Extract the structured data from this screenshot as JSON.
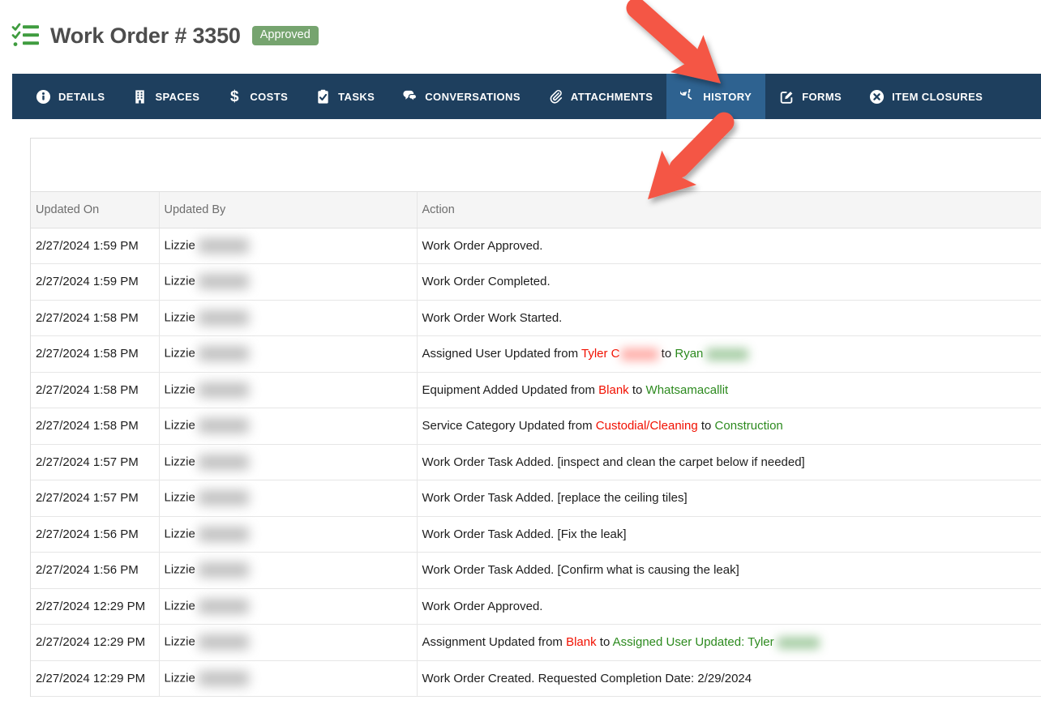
{
  "header": {
    "title": "Work Order # 3350",
    "status_badge": "Approved",
    "icon": "checklist-icon"
  },
  "nav": {
    "tabs": [
      {
        "label": "DETAILS",
        "icon": "info-icon",
        "active": false
      },
      {
        "label": "SPACES",
        "icon": "building-icon",
        "active": false
      },
      {
        "label": "COSTS",
        "icon": "dollar-icon",
        "active": false
      },
      {
        "label": "TASKS",
        "icon": "clipboard-check-icon",
        "active": false
      },
      {
        "label": "CONVERSATIONS",
        "icon": "chat-bubbles-icon",
        "active": false
      },
      {
        "label": "ATTACHMENTS",
        "icon": "paperclip-icon",
        "active": false
      },
      {
        "label": "HISTORY",
        "icon": "history-clock-icon",
        "active": true
      },
      {
        "label": "FORMS",
        "icon": "edit-form-icon",
        "active": false
      },
      {
        "label": "ITEM CLOSURES",
        "icon": "close-circle-icon",
        "active": false
      }
    ]
  },
  "history_table": {
    "columns": [
      "Updated On",
      "Updated By",
      "Action"
    ],
    "rows": [
      {
        "updated_on": "2/27/2024 1:59 PM",
        "updated_by": "Lizzie",
        "by_redacted": true,
        "action": [
          {
            "text": "Work Order Approved."
          }
        ]
      },
      {
        "updated_on": "2/27/2024 1:59 PM",
        "updated_by": "Lizzie",
        "by_redacted": true,
        "action": [
          {
            "text": "Work Order Completed."
          }
        ]
      },
      {
        "updated_on": "2/27/2024 1:58 PM",
        "updated_by": "Lizzie",
        "by_redacted": true,
        "action": [
          {
            "text": "Work Order Work Started."
          }
        ]
      },
      {
        "updated_on": "2/27/2024 1:58 PM",
        "updated_by": "Lizzie",
        "by_redacted": true,
        "action": [
          {
            "text": "Assigned User Updated from "
          },
          {
            "text": "Tyler C",
            "style": "removed"
          },
          {
            "style": "blur-red"
          },
          {
            "text": " to "
          },
          {
            "text": "Ryan",
            "style": "added"
          },
          {
            "style": "blur-green"
          }
        ]
      },
      {
        "updated_on": "2/27/2024 1:58 PM",
        "updated_by": "Lizzie",
        "by_redacted": true,
        "action": [
          {
            "text": "Equipment Added Updated from "
          },
          {
            "text": "Blank",
            "style": "removed"
          },
          {
            "text": " to "
          },
          {
            "text": "Whatsamacallit",
            "style": "added"
          }
        ]
      },
      {
        "updated_on": "2/27/2024 1:58 PM",
        "updated_by": "Lizzie",
        "by_redacted": true,
        "action": [
          {
            "text": "Service Category Updated from "
          },
          {
            "text": "Custodial/Cleaning",
            "style": "removed"
          },
          {
            "text": " to "
          },
          {
            "text": "Construction",
            "style": "added"
          }
        ]
      },
      {
        "updated_on": "2/27/2024 1:57 PM",
        "updated_by": "Lizzie",
        "by_redacted": true,
        "action": [
          {
            "text": "Work Order Task Added. [inspect and clean the carpet below if needed]"
          }
        ]
      },
      {
        "updated_on": "2/27/2024 1:57 PM",
        "updated_by": "Lizzie",
        "by_redacted": true,
        "action": [
          {
            "text": "Work Order Task Added. [replace the ceiling tiles]"
          }
        ]
      },
      {
        "updated_on": "2/27/2024 1:56 PM",
        "updated_by": "Lizzie",
        "by_redacted": true,
        "action": [
          {
            "text": "Work Order Task Added. [Fix the leak]"
          }
        ]
      },
      {
        "updated_on": "2/27/2024 1:56 PM",
        "updated_by": "Lizzie",
        "by_redacted": true,
        "action": [
          {
            "text": "Work Order Task Added. [Confirm what is causing the leak]"
          }
        ]
      },
      {
        "updated_on": "2/27/2024 12:29 PM",
        "updated_by": "Lizzie",
        "by_redacted": true,
        "action": [
          {
            "text": "Work Order Approved."
          }
        ]
      },
      {
        "updated_on": "2/27/2024 12:29 PM",
        "updated_by": "Lizzie",
        "by_redacted": true,
        "action": [
          {
            "text": "Assignment Updated from "
          },
          {
            "text": "Blank",
            "style": "removed"
          },
          {
            "text": " to "
          },
          {
            "text": "Assigned User Updated: Tyler",
            "style": "added"
          },
          {
            "style": "blur-green"
          }
        ]
      },
      {
        "updated_on": "2/27/2024 12:29 PM",
        "updated_by": "Lizzie",
        "by_redacted": true,
        "action": [
          {
            "text": "Work Order Created. Requested Completion Date: 2/29/2024"
          }
        ]
      }
    ]
  },
  "annotations": {
    "arrows": [
      {
        "name": "red-arrow-to-history-tab"
      },
      {
        "name": "red-arrow-to-history-table"
      }
    ]
  },
  "colors": {
    "navbar": "#1e3f5e",
    "navbar_active": "#2e6290",
    "badge_green": "#76a46f",
    "title_icon_green": "#3f9c3f",
    "removed_red": "#f11000",
    "added_green": "#2c8a1e",
    "arrow_red": "#f45744"
  }
}
